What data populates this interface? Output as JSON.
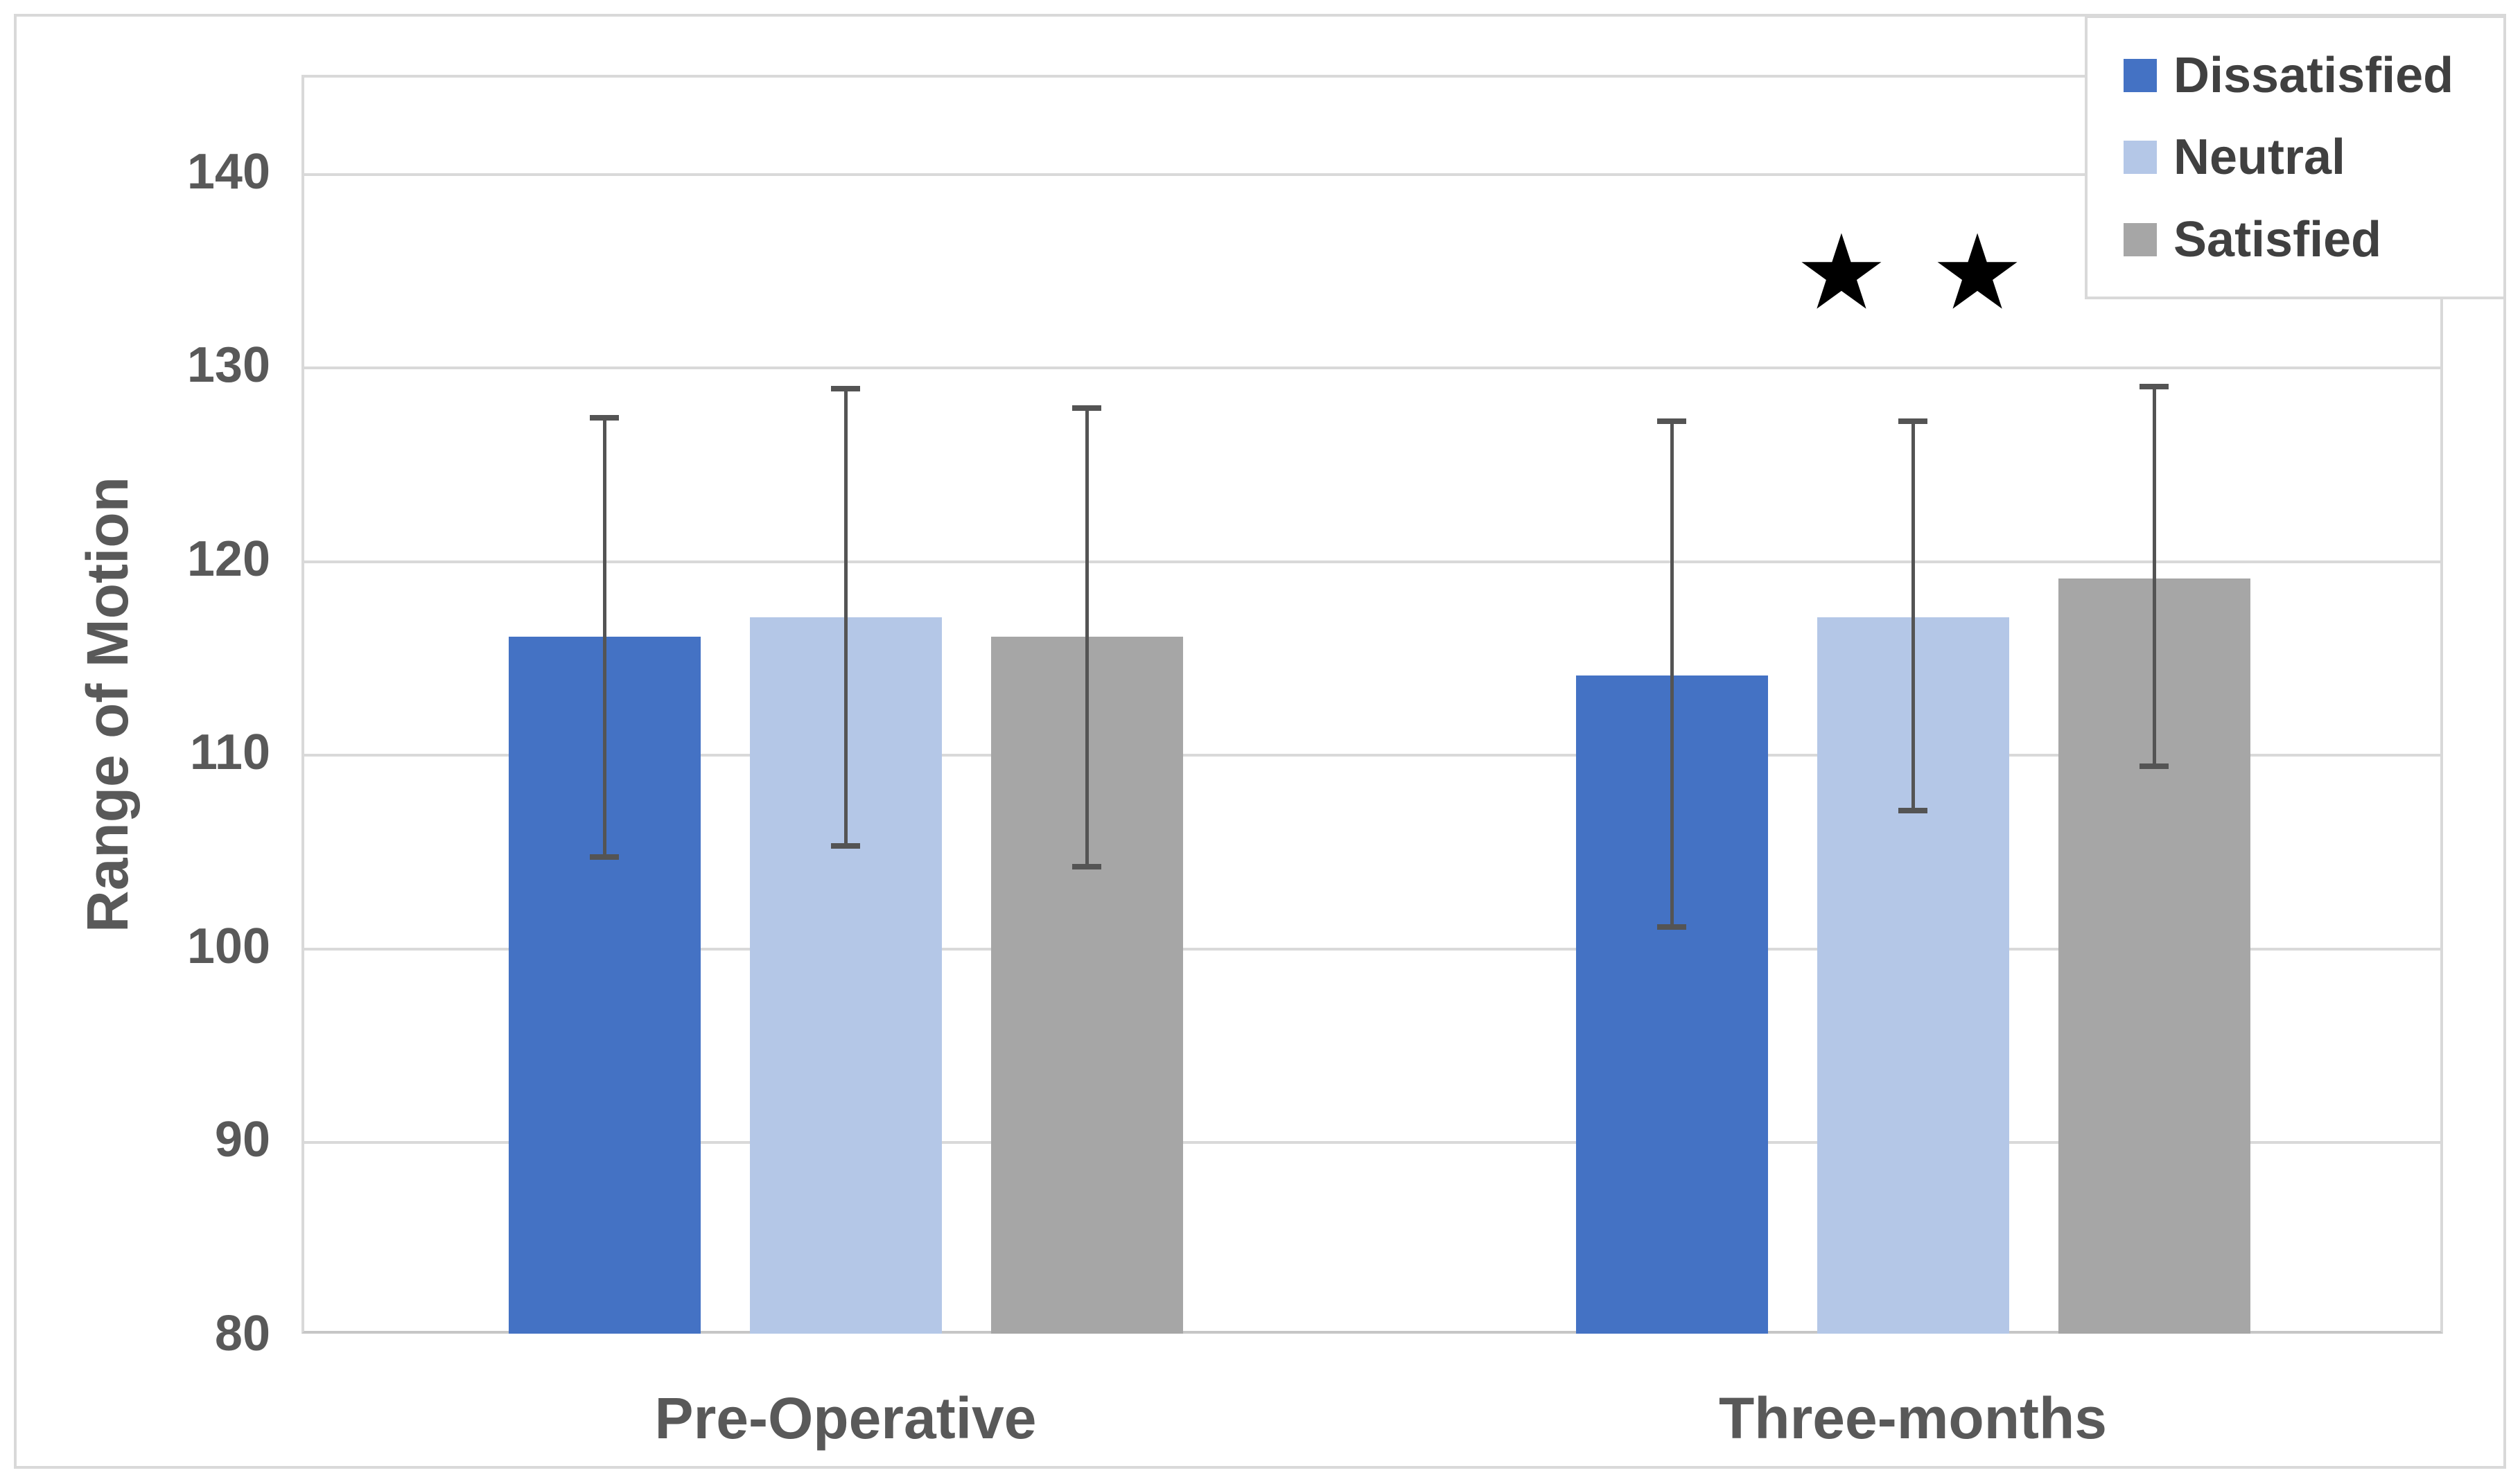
{
  "y_axis": {
    "title": "Range of Motion"
  },
  "annotation": {
    "text": "★ ★"
  },
  "chart_data": {
    "type": "bar",
    "categories": [
      "Pre-Operative",
      "Three-months"
    ],
    "series": [
      {
        "name": "Dissatisfied",
        "color": "#4472C4",
        "values": [
          116,
          114
        ],
        "error_low": [
          104.6,
          101.0
        ],
        "error_high": [
          127.3,
          127.1
        ]
      },
      {
        "name": "Neutral",
        "color": "#B4C7E7",
        "values": [
          117,
          117
        ],
        "error_low": [
          105.2,
          107.0
        ],
        "error_high": [
          128.8,
          127.1
        ]
      },
      {
        "name": "Satisfied",
        "color": "#A6A6A6",
        "values": [
          116,
          119
        ],
        "error_low": [
          104.1,
          109.3
        ],
        "error_high": [
          127.8,
          128.9
        ]
      }
    ],
    "title": "",
    "xlabel": "",
    "ylabel": "Range of Motion",
    "ylim": [
      80,
      145
    ],
    "yticks": [
      80,
      90,
      100,
      110,
      120,
      130,
      140
    ],
    "grid": true,
    "legend_position": "top-right",
    "annotation": {
      "text": "★ ★",
      "above_category": "Three-months",
      "y_value": 134.8
    }
  }
}
